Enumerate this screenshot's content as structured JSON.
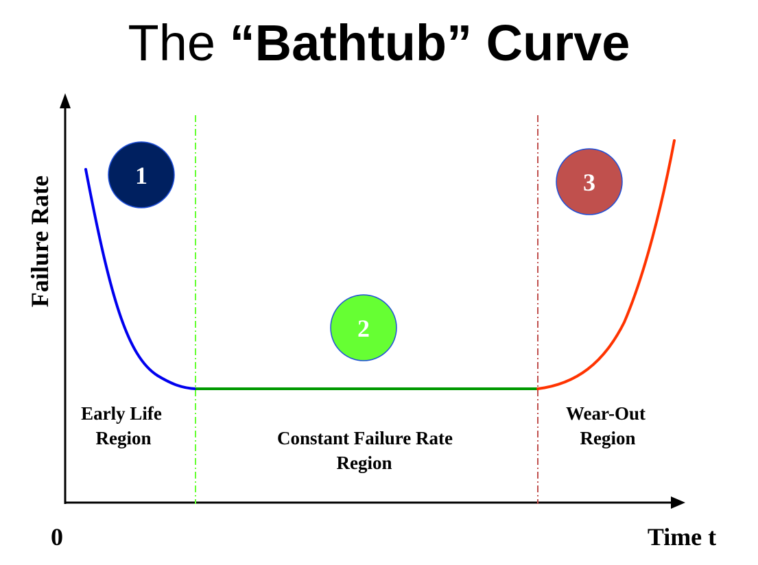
{
  "title": {
    "prefix": "The ",
    "emphasis": "“Bathtub”",
    "suffix": " Curve"
  },
  "axes": {
    "y_label": "Failure Rate",
    "x_label": "Time t",
    "origin_label": "0"
  },
  "regions": [
    {
      "number": "1",
      "label_lines": [
        "Early Life",
        "Region"
      ],
      "color": "#002060",
      "curve_color": "#0000ee",
      "boundary_color": null
    },
    {
      "number": "2",
      "label_lines": [
        "Constant Failure Rate",
        "Region"
      ],
      "color": "#66ff33",
      "curve_color": "#009900",
      "boundary_color": "#66ff33"
    },
    {
      "number": "3",
      "label_lines": [
        "Wear-Out",
        "Region"
      ],
      "color": "#c0504d",
      "curve_color": "#ff3300",
      "boundary_color": "#c0504d"
    }
  ],
  "colors": {
    "axis": "#000000",
    "badge_stroke": "#1f4fd8",
    "badge_text": "#ffffff"
  }
}
